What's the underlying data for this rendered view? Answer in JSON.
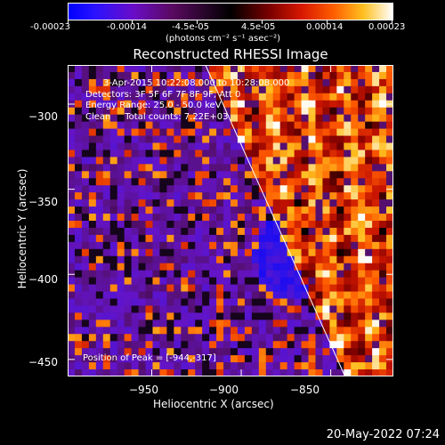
{
  "colorbar": {
    "tick_labels": [
      "-0.00023",
      "-0.00014",
      "-4.5e-05",
      "4.5e-05",
      "0.00014",
      "0.00023"
    ],
    "tick_values": [
      -0.00023,
      -0.00014,
      -4.5e-05,
      4.5e-05,
      0.00014,
      0.00023
    ],
    "unit_label": "(photons cm⁻² s⁻¹ asec⁻²)",
    "range": [
      -0.00023,
      0.00023
    ]
  },
  "chart_data": {
    "type": "heatmap",
    "title": "Reconstructed RHESSI Image",
    "xlabel": "Heliocentric X (arcsec)",
    "ylabel": "Heliocentric Y (arcsec)",
    "xlim": [
      -997,
      -815
    ],
    "ylim": [
      -460,
      -277
    ],
    "x_ticks": [
      -950,
      -900,
      -850
    ],
    "x_tick_labels": [
      "−950",
      "−900",
      "−850"
    ],
    "y_ticks": [
      -300,
      -350,
      -400,
      -450
    ],
    "y_tick_labels": [
      "−300",
      "−350",
      "−400",
      "−450"
    ],
    "limb_line": [
      [
        -920,
        -277
      ],
      [
        -842,
        -460
      ]
    ],
    "annotations": [
      "3-Apr-2015 10:22:08.000 to 10:28:08.000",
      "Detectors: 3F 5F 6F 7F 8F 9F, Att 0",
      "Energy Range: 25.0 - 50.0 keV",
      "Clean     Total counts: 7.22E+03"
    ],
    "peak_label": "Position of Peak = [-944,-317]",
    "peak_position": [
      -944,
      -317
    ]
  },
  "footer": {
    "date": "20-May-2022 07:24"
  }
}
